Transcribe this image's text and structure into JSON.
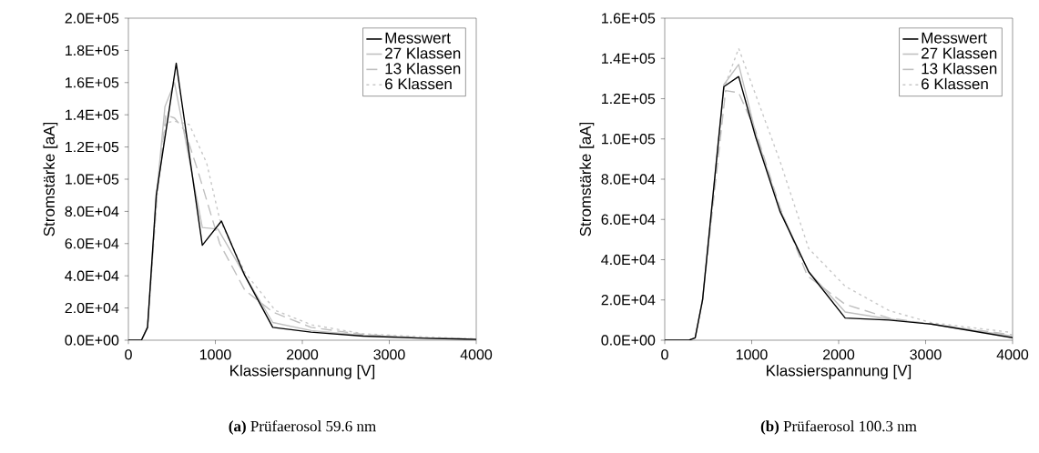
{
  "chart_data": [
    {
      "type": "line",
      "xlabel": "Klassierspannung [V]",
      "ylabel": "Stromstärke [aA]",
      "annotations": [
        "**(a)** Prüfaerosol 59.6 nm"
      ],
      "legend": "top right",
      "marker": "none",
      "xlim": [
        0,
        4000
      ],
      "xticks": [
        0,
        1000,
        2000,
        3000,
        4000
      ],
      "ylim": [
        0,
        200000
      ],
      "yticks": [
        {
          "value": 0,
          "label": "0.0E+00"
        },
        {
          "value": 20000,
          "label": "2.0E+04"
        },
        {
          "value": 40000,
          "label": "4.0E+04"
        },
        {
          "value": 60000,
          "label": "6.0E+04"
        },
        {
          "value": 80000,
          "label": "8.0E+04"
        },
        {
          "value": 100000,
          "label": "1.0E+05"
        },
        {
          "value": 120000,
          "label": "1.2E+05"
        },
        {
          "value": 140000,
          "label": "1.4E+05"
        },
        {
          "value": 160000,
          "label": "1.6E+05"
        },
        {
          "value": 180000,
          "label": "1.8E+05"
        },
        {
          "value": 200000,
          "label": "2.0E+05"
        }
      ],
      "series": [
        {
          "name": "Messwert",
          "color": "#000000",
          "line_style": "solid",
          "x": [
            0,
            150,
            220,
            320,
            550,
            850,
            1070,
            1340,
            1660,
            2100,
            2700,
            3400,
            4000
          ],
          "values": [
            0,
            0,
            8000,
            90000,
            172000,
            59000,
            74000,
            40000,
            8000,
            5000,
            2500,
            1200,
            500
          ]
        },
        {
          "name": "27 Klassen",
          "color": "#c0c0c0",
          "line_style": "solid",
          "x": [
            0,
            150,
            220,
            320,
            420,
            530,
            850,
            1030,
            1340,
            1660,
            2100,
            2700,
            3400,
            4000
          ],
          "values": [
            0,
            0,
            8000,
            88000,
            145000,
            160000,
            70000,
            69000,
            40000,
            11000,
            6000,
            3000,
            1500,
            600
          ]
        },
        {
          "name": "13 Klassen",
          "color": "#bfbfbf",
          "line_style": "dashed",
          "x": [
            0,
            150,
            220,
            330,
            430,
            530,
            650,
            800,
            1050,
            1340,
            1660,
            2100,
            2700,
            3400,
            4000
          ],
          "values": [
            0,
            0,
            8000,
            90000,
            140000,
            138000,
            130000,
            105000,
            60000,
            31000,
            17500,
            8000,
            3500,
            1500,
            700
          ]
        },
        {
          "name": "6 Klassen",
          "color": "#c8c8c8",
          "line_style": "dotted",
          "x": [
            0,
            150,
            220,
            330,
            430,
            530,
            700,
            900,
            1050,
            1340,
            1690,
            2110,
            2700,
            3400,
            4000
          ],
          "values": [
            0,
            0,
            8000,
            90000,
            135000,
            136000,
            134000,
            110000,
            75000,
            42000,
            18500,
            9500,
            4000,
            2000,
            800
          ]
        }
      ]
    },
    {
      "type": "line",
      "xlabel": "Klassierspannung [V]",
      "ylabel": "Stromstärke [aA]",
      "annotations": [
        "**(b)** Prüfaerosol 100.3 nm"
      ],
      "legend": "top right",
      "marker": "none",
      "xlim": [
        0,
        4000
      ],
      "xticks": [
        0,
        1000,
        2000,
        3000,
        4000
      ],
      "ylim": [
        0,
        160000
      ],
      "yticks": [
        {
          "value": 0,
          "label": "0.0E+00"
        },
        {
          "value": 20000,
          "label": "2.0E+04"
        },
        {
          "value": 40000,
          "label": "4.0E+04"
        },
        {
          "value": 60000,
          "label": "6.0E+04"
        },
        {
          "value": 80000,
          "label": "8.0E+04"
        },
        {
          "value": 100000,
          "label": "1.0E+05"
        },
        {
          "value": 120000,
          "label": "1.2E+05"
        },
        {
          "value": 140000,
          "label": "1.4E+05"
        },
        {
          "value": 160000,
          "label": "1.6E+05"
        }
      ],
      "series": [
        {
          "name": "Messwert",
          "color": "#000000",
          "line_style": "solid",
          "x": [
            0,
            280,
            350,
            435,
            680,
            850,
            1045,
            1325,
            1655,
            2075,
            2580,
            3065,
            4000
          ],
          "values": [
            0,
            0,
            1200,
            20000,
            126000,
            131000,
            101000,
            64000,
            34000,
            11000,
            10000,
            8000,
            1200
          ]
        },
        {
          "name": "27 Klassen",
          "color": "#c0c0c0",
          "line_style": "solid",
          "x": [
            0,
            280,
            350,
            435,
            680,
            850,
            1045,
            1325,
            1655,
            2075,
            2580,
            3065,
            4000
          ],
          "values": [
            0,
            0,
            1200,
            20000,
            127000,
            137000,
            103000,
            65000,
            34000,
            14000,
            10500,
            8000,
            2000
          ]
        },
        {
          "name": "13 Klassen",
          "color": "#bfbfbf",
          "line_style": "dashed",
          "x": [
            0,
            280,
            350,
            435,
            700,
            850,
            1045,
            1325,
            1640,
            2075,
            2580,
            3065,
            4000
          ],
          "values": [
            0,
            0,
            1200,
            20000,
            124000,
            123000,
            104000,
            66000,
            32000,
            17800,
            11000,
            8000,
            2700
          ]
        },
        {
          "name": "6 Klassen",
          "color": "#c8c8c8",
          "line_style": "dotted",
          "x": [
            0,
            280,
            350,
            435,
            680,
            850,
            1045,
            1325,
            1655,
            2075,
            2580,
            3065,
            4000
          ],
          "values": [
            0,
            0,
            1200,
            20000,
            125000,
            145000,
            122000,
            89000,
            45600,
            26800,
            14700,
            8700,
            3800
          ]
        }
      ]
    }
  ]
}
